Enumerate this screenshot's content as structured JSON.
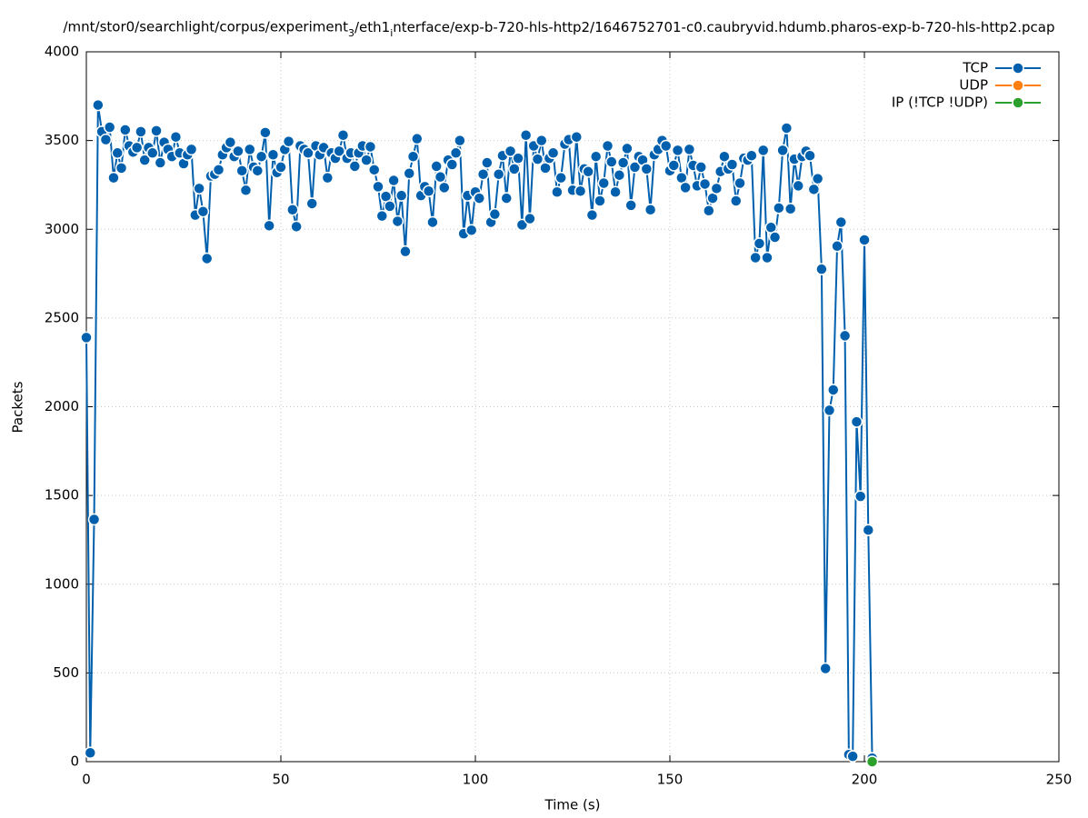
{
  "chart_data": {
    "type": "line",
    "title": "/mnt/stor0/searchlight/corpus/experiment_3/eth1_interface/exp-b-720-hls-http2/1646752701-c0.caubryvid.hdumb.pharos-exp-b-720-hls-http2.pcap",
    "x_label": "Time (s)",
    "y_label": "Packets",
    "xlim": [
      0,
      250
    ],
    "xticks": [
      0,
      50,
      100,
      150,
      200,
      250
    ],
    "ylim": [
      0,
      4000
    ],
    "yticks": [
      0,
      500,
      1000,
      1500,
      2000,
      2500,
      3000,
      3500,
      4000
    ],
    "grid": true,
    "legend": "top-right",
    "series": [
      {
        "name": "TCP",
        "color": "#0060ad",
        "x": [
          0,
          1,
          2,
          3,
          4,
          5,
          6,
          7,
          8,
          9,
          10,
          11,
          12,
          13,
          14,
          15,
          16,
          17,
          18,
          19,
          20,
          21,
          22,
          23,
          24,
          25,
          26,
          27,
          28,
          29,
          30,
          31,
          32,
          33,
          34,
          35,
          36,
          37,
          38,
          39,
          40,
          41,
          42,
          43,
          44,
          45,
          46,
          47,
          48,
          49,
          50,
          51,
          52,
          53,
          54,
          55,
          56,
          57,
          58,
          59,
          60,
          61,
          62,
          63,
          64,
          65,
          66,
          67,
          68,
          69,
          70,
          71,
          72,
          73,
          74,
          75,
          76,
          77,
          78,
          79,
          80,
          81,
          82,
          83,
          84,
          85,
          86,
          87,
          88,
          89,
          90,
          91,
          92,
          93,
          94,
          95,
          96,
          97,
          98,
          99,
          100,
          101,
          102,
          103,
          104,
          105,
          106,
          107,
          108,
          109,
          110,
          111,
          112,
          113,
          114,
          115,
          116,
          117,
          118,
          119,
          120,
          121,
          122,
          123,
          124,
          125,
          126,
          127,
          128,
          129,
          130,
          131,
          132,
          133,
          134,
          135,
          136,
          137,
          138,
          139,
          140,
          141,
          142,
          143,
          144,
          145,
          146,
          147,
          148,
          149,
          150,
          151,
          152,
          153,
          154,
          155,
          156,
          157,
          158,
          159,
          160,
          161,
          162,
          163,
          164,
          165,
          166,
          167,
          168,
          169,
          170,
          171,
          172,
          173,
          174,
          175,
          176,
          177,
          178,
          179,
          180,
          181,
          182,
          183,
          184,
          185,
          186,
          187,
          188,
          189,
          190,
          191,
          192,
          193,
          194,
          195,
          196,
          197,
          198,
          199,
          200,
          201,
          202
        ],
        "values": [
          2390,
          50,
          1365,
          3700,
          3550,
          3505,
          3575,
          3290,
          3430,
          3345,
          3560,
          3470,
          3435,
          3460,
          3550,
          3390,
          3460,
          3430,
          3555,
          3375,
          3490,
          3450,
          3410,
          3520,
          3430,
          3370,
          3420,
          3450,
          3080,
          3230,
          3100,
          2835,
          3300,
          3310,
          3335,
          3420,
          3460,
          3490,
          3410,
          3440,
          3330,
          3220,
          3450,
          3350,
          3330,
          3410,
          3545,
          3020,
          3420,
          3320,
          3350,
          3450,
          3495,
          3110,
          3015,
          3470,
          3450,
          3430,
          3145,
          3470,
          3420,
          3460,
          3290,
          3430,
          3400,
          3440,
          3530,
          3400,
          3430,
          3355,
          3430,
          3470,
          3390,
          3465,
          3335,
          3240,
          3075,
          3185,
          3130,
          3275,
          3045,
          3190,
          2875,
          3315,
          3410,
          3510,
          3190,
          3240,
          3215,
          3040,
          3355,
          3295,
          3235,
          3390,
          3365,
          3430,
          3500,
          2975,
          3190,
          2995,
          3210,
          3175,
          3310,
          3375,
          3040,
          3085,
          3310,
          3415,
          3175,
          3440,
          3340,
          3400,
          3025,
          3530,
          3060,
          3470,
          3395,
          3500,
          3345,
          3400,
          3430,
          3210,
          3290,
          3480,
          3505,
          3220,
          3520,
          3215,
          3340,
          3325,
          3080,
          3410,
          3160,
          3260,
          3470,
          3380,
          3210,
          3305,
          3375,
          3455,
          3135,
          3350,
          3410,
          3390,
          3340,
          3110,
          3420,
          3450,
          3500,
          3470,
          3330,
          3360,
          3445,
          3290,
          3235,
          3450,
          3360,
          3245,
          3350,
          3255,
          3105,
          3175,
          3230,
          3325,
          3410,
          3340,
          3365,
          3160,
          3260,
          3400,
          3390,
          3415,
          2840,
          2920,
          3445,
          2840,
          3010,
          2955,
          3120,
          3445,
          3570,
          3115,
          3395,
          3245,
          3410,
          3440,
          3415,
          3225,
          3285,
          2775,
          525,
          1980,
          2095,
          2905,
          3040,
          2400,
          40,
          30,
          1915,
          1495,
          2940,
          1305,
          20
        ]
      },
      {
        "name": "UDP",
        "color": "#ff7f0e",
        "x": [],
        "values": []
      },
      {
        "name": "IP (!TCP  !UDP)",
        "color": "#2ca02c",
        "x": [
          202
        ],
        "values": [
          0
        ]
      }
    ]
  }
}
